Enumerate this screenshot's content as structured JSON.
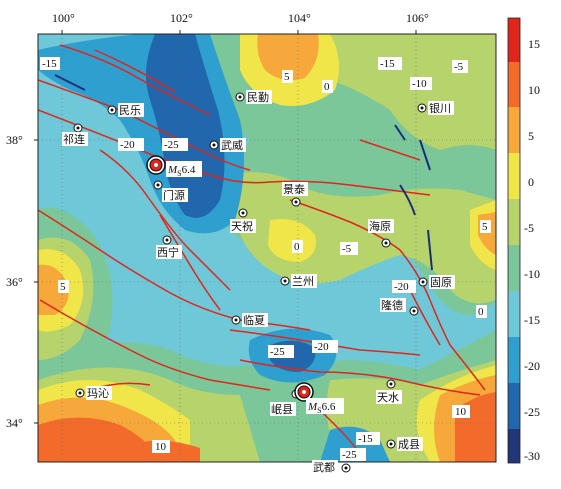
{
  "map": {
    "lon_ticks": [
      "100°",
      "102°",
      "104°",
      "106°"
    ],
    "lat_ticks": [
      "38°",
      "36°",
      "34°"
    ],
    "contour_labels": [
      "-15",
      "5",
      "0",
      "-15",
      "-10",
      "-5",
      "-20",
      "-25",
      "0",
      "-5",
      "5",
      "5",
      "-20",
      "0",
      "-25",
      "-20",
      "10",
      "10",
      "-15",
      "-25"
    ],
    "cities": [
      "民乐",
      "祁连",
      "武威",
      "门源",
      "景泰",
      "天祝",
      "海原",
      "西宁",
      "兰州",
      "固原",
      "隆德",
      "临夏",
      "玛沁",
      "天水",
      "岷县",
      "成县",
      "武都",
      "民勤",
      "银川"
    ],
    "earthquakes": [
      {
        "label_M": "M",
        "label_sub": "S",
        "label_val": "6.4"
      },
      {
        "label_M": "M",
        "label_sub": "S",
        "label_val": "6.6"
      }
    ]
  },
  "colorbar": {
    "ticks": [
      "15",
      "10",
      "5",
      "0",
      "-5",
      "-10",
      "-15",
      "-20",
      "-25",
      "-30"
    ],
    "colors": [
      "#e0261c",
      "#f26b2a",
      "#f7a83a",
      "#f0e64a",
      "#b7d36b",
      "#7bc79a",
      "#6ec8d8",
      "#2f9fd0",
      "#2067ad",
      "#223779"
    ]
  }
}
